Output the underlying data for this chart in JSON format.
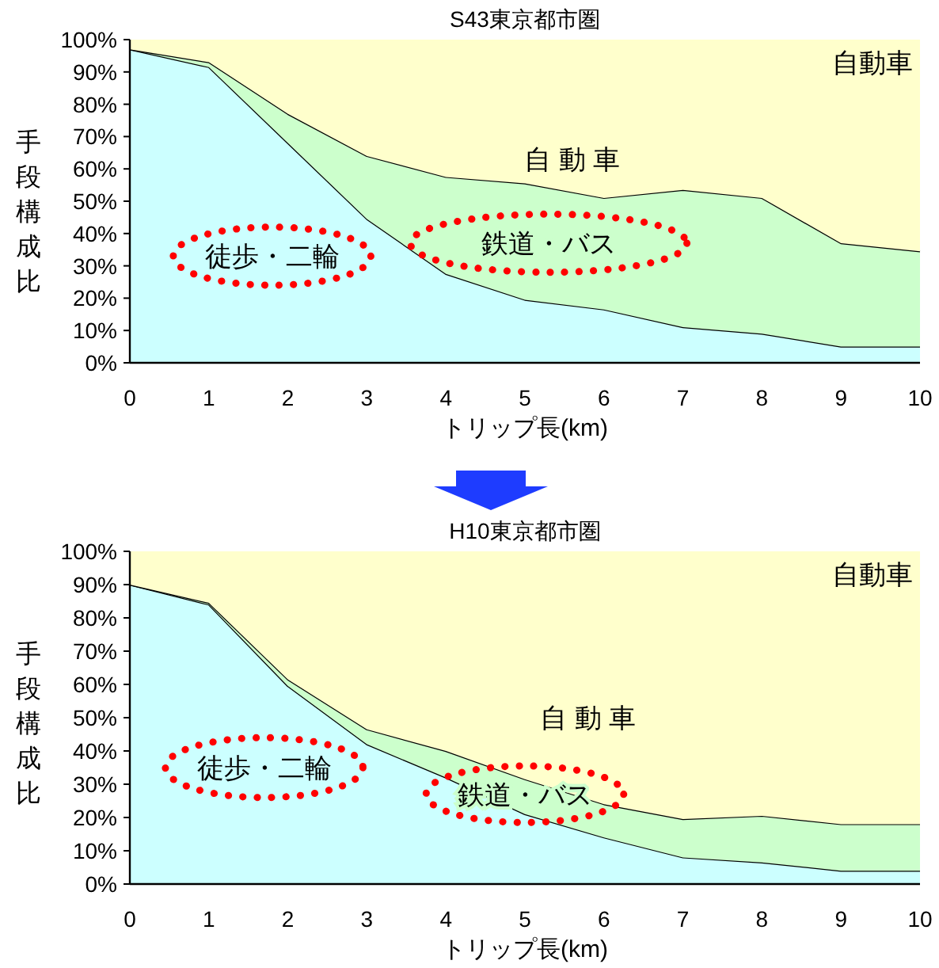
{
  "chart_data": [
    {
      "type": "area",
      "title": "S43東京都市圏",
      "xlabel": "トリップ長(km)",
      "ylabel": "手段構成比",
      "stacked": true,
      "x": [
        0,
        1,
        2,
        3,
        4,
        5,
        6,
        7,
        8,
        9,
        10
      ],
      "series": [
        {
          "name": "徒歩・二輪",
          "color": "#ccffff",
          "values": [
            97,
            91.5,
            68,
            44.5,
            27.5,
            19.5,
            16.5,
            11,
            9,
            5,
            5
          ]
        },
        {
          "name": "鉄道・バス",
          "color": "#ccffcc",
          "values": [
            0,
            1.5,
            9,
            19.5,
            30,
            36,
            34.5,
            42.5,
            42,
            32,
            29.5
          ]
        },
        {
          "name": "自 動 車",
          "color": "#ffffcc",
          "values": [
            3,
            7,
            23,
            36,
            42.5,
            44.5,
            49,
            46.5,
            49,
            63,
            65.5
          ]
        }
      ],
      "annotations": [
        "自動車"
      ],
      "xlim": [
        0,
        10
      ],
      "xticks": [
        0,
        1,
        2,
        3,
        4,
        5,
        6,
        7,
        8,
        9,
        10
      ],
      "ylim": [
        0,
        100
      ],
      "yticks": [
        {
          "value": 0,
          "label": "0%"
        },
        {
          "value": 10,
          "label": "10%"
        },
        {
          "value": 20,
          "label": "20%"
        },
        {
          "value": 30,
          "label": "30%"
        },
        {
          "value": 40,
          "label": "40%"
        },
        {
          "value": 50,
          "label": "50%"
        },
        {
          "value": 60,
          "label": "60%"
        },
        {
          "value": 70,
          "label": "70%"
        },
        {
          "value": 80,
          "label": "80%"
        },
        {
          "value": 90,
          "label": "90%"
        },
        {
          "value": 100,
          "label": "100%"
        }
      ]
    },
    {
      "type": "area",
      "title": "H10東京都市圏",
      "xlabel": "トリップ長(km)",
      "ylabel": "手段構成比",
      "stacked": true,
      "x": [
        0,
        1,
        2,
        3,
        4,
        5,
        6,
        7,
        8,
        9,
        10
      ],
      "series": [
        {
          "name": "徒歩・二輪",
          "color": "#ccffff",
          "values": [
            90,
            84,
            59.5,
            42,
            32,
            21,
            14,
            8,
            6.5,
            4,
            4
          ]
        },
        {
          "name": "鉄道・バス",
          "color": "#ccffcc",
          "values": [
            0,
            0.5,
            2,
            4.5,
            8,
            10.5,
            10,
            11.5,
            14,
            14,
            14
          ]
        },
        {
          "name": "自 動 車",
          "color": "#ffffcc",
          "values": [
            10,
            15.5,
            38.5,
            53.5,
            60,
            68.5,
            76,
            80.5,
            79.5,
            82,
            82
          ]
        }
      ],
      "annotations": [
        "自動車"
      ],
      "xlim": [
        0,
        10
      ],
      "xticks": [
        0,
        1,
        2,
        3,
        4,
        5,
        6,
        7,
        8,
        9,
        10
      ],
      "ylim": [
        0,
        100
      ],
      "yticks": [
        {
          "value": 0,
          "label": "0%"
        },
        {
          "value": 10,
          "label": "10%"
        },
        {
          "value": 20,
          "label": "20%"
        },
        {
          "value": 30,
          "label": "30%"
        },
        {
          "value": 40,
          "label": "40%"
        },
        {
          "value": 50,
          "label": "50%"
        },
        {
          "value": 60,
          "label": "60%"
        },
        {
          "value": 70,
          "label": "70%"
        },
        {
          "value": 80,
          "label": "80%"
        },
        {
          "value": 90,
          "label": "90%"
        },
        {
          "value": 100,
          "label": "100%"
        }
      ]
    }
  ]
}
